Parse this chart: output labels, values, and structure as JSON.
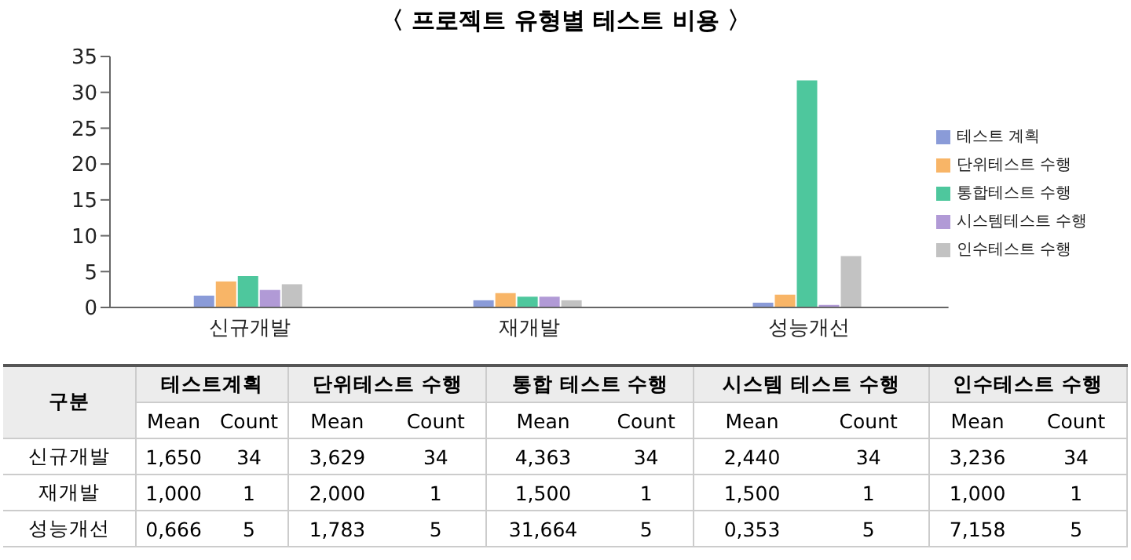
{
  "chart_data": [
    {
      "type": "bar",
      "title": "〈 프로젝트 유형별 테스트 비용 〉",
      "categories": [
        "신규개발",
        "재개발",
        "성능개선"
      ],
      "ylim": [
        0,
        35
      ],
      "yticks": [
        0,
        5,
        10,
        15,
        20,
        25,
        30,
        35
      ],
      "legend": "right",
      "annotations": [
        "Mean"
      ],
      "series": [
        {
          "name": "테스트 계획",
          "color": "#8a9bd8",
          "values": [
            1.65,
            1.0,
            0.666
          ],
          "value_labels": [
            "1,650",
            "1,000",
            "0,666"
          ]
        },
        {
          "name": "단위테스트 수행",
          "color": "#f8b567",
          "values": [
            3.629,
            2.0,
            1.783
          ],
          "value_labels": [
            "3,629",
            "2,000",
            "1,783"
          ]
        },
        {
          "name": "통합테스트 수행",
          "color": "#4ec79d",
          "values": [
            4.363,
            1.5,
            31.664
          ],
          "value_labels": [
            "4,363",
            "1,500",
            "31,664"
          ]
        },
        {
          "name": "시스템테스트 수행",
          "color": "#b19ad6",
          "values": [
            2.44,
            1.5,
            0.353
          ],
          "value_labels": [
            "2,440",
            "1,500",
            "0,353"
          ]
        },
        {
          "name": "인수테스트 수행",
          "color": "#c2c2c2",
          "values": [
            3.236,
            1.0,
            7.158
          ],
          "value_labels": [
            "3,236",
            "1,000",
            "7,158"
          ]
        }
      ]
    },
    {
      "type": "other",
      "categories": [
        "신규개발",
        "재개발",
        "성능개선"
      ],
      "annotations": [
        "구분",
        "Count"
      ],
      "data_labels": true,
      "series": [
        {
          "name": "테스트계획",
          "values": [
            34,
            1,
            5
          ]
        },
        {
          "name": "단위테스트 수행",
          "values": [
            34,
            1,
            5
          ]
        },
        {
          "name": "통합 테스트 수행",
          "values": [
            34,
            1,
            5
          ]
        },
        {
          "name": "시스템 테스트 수행",
          "values": [
            34,
            1,
            5
          ]
        },
        {
          "name": "인수테스트 수행",
          "values": [
            34,
            1,
            5
          ]
        }
      ]
    }
  ]
}
